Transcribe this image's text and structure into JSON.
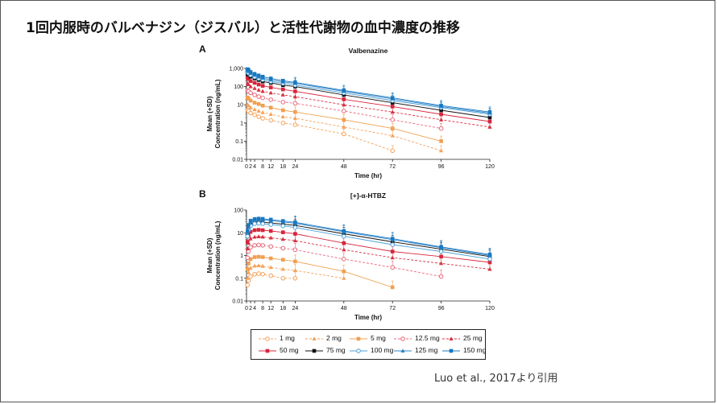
{
  "slide": {
    "title": "1回内服時のバルベナジン（ジスバル）と活性代謝物の血中濃度の推移",
    "citation": "Luo et al., 2017より引用"
  },
  "chart_data": [
    {
      "panel": "A",
      "type": "line",
      "title": "Valbenazine",
      "xlabel": "Time (hr)",
      "ylabel": "Mean (+SD)\nConcentration (ng/mL)",
      "yscale": "log",
      "ylim": [
        0.01,
        1000
      ],
      "xlim": [
        0,
        120
      ],
      "xticks": [
        0,
        2,
        4,
        8,
        12,
        18,
        24,
        48,
        72,
        96,
        120
      ],
      "yticks": [
        0.01,
        0.1,
        1,
        10,
        100,
        1000
      ],
      "yticklabels": [
        "0.01",
        "0.1",
        "1",
        "10",
        "100",
        "1,000"
      ],
      "series": [
        {
          "name": "1 mg",
          "color": "#f4a259",
          "marker": "circle-open",
          "dash": "dashed",
          "x": [
            0.5,
            1,
            2,
            4,
            6,
            8,
            12,
            18,
            24,
            48,
            72
          ],
          "y": [
            5,
            4.5,
            3.5,
            2.8,
            2.2,
            1.8,
            1.4,
            1.0,
            0.8,
            0.25,
            0.03
          ]
        },
        {
          "name": "2 mg",
          "color": "#f4a259",
          "marker": "triangle",
          "dash": "dashed",
          "x": [
            0.5,
            1,
            2,
            4,
            6,
            8,
            12,
            18,
            24,
            48,
            72,
            96
          ],
          "y": [
            10,
            9,
            7,
            5.5,
            4.5,
            3.8,
            3,
            2.2,
            1.8,
            0.6,
            0.2,
            0.03
          ]
        },
        {
          "name": "5 mg",
          "color": "#f0a050",
          "marker": "square",
          "dash": "solid",
          "x": [
            0.5,
            1,
            2,
            4,
            6,
            8,
            12,
            18,
            24,
            48,
            72,
            96
          ],
          "y": [
            25,
            22,
            17,
            13,
            11,
            9,
            7,
            5,
            4,
            1.5,
            0.5,
            0.1
          ]
        },
        {
          "name": "12.5 mg",
          "color": "#e8677a",
          "marker": "circle-open",
          "dash": "dashed",
          "x": [
            0.5,
            1,
            2,
            4,
            6,
            8,
            12,
            18,
            24,
            48,
            72,
            96
          ],
          "y": [
            60,
            55,
            45,
            35,
            28,
            24,
            19,
            14,
            12,
            4.5,
            1.5,
            0.5
          ]
        },
        {
          "name": "25 mg",
          "color": "#d7303f",
          "marker": "triangle",
          "dash": "dashed",
          "x": [
            0.5,
            1,
            2,
            4,
            6,
            8,
            12,
            18,
            24,
            48,
            72,
            96,
            120
          ],
          "y": [
            150,
            130,
            100,
            80,
            65,
            55,
            45,
            35,
            28,
            10,
            4,
            1.5,
            0.6
          ]
        },
        {
          "name": "50 mg",
          "color": "#d7263d",
          "marker": "square",
          "dash": "solid",
          "x": [
            0.5,
            1,
            2,
            4,
            6,
            8,
            12,
            18,
            24,
            48,
            72,
            96,
            120
          ],
          "y": [
            300,
            260,
            200,
            160,
            130,
            110,
            90,
            70,
            55,
            20,
            8,
            3,
            1.2
          ]
        },
        {
          "name": "75 mg",
          "color": "#111111",
          "marker": "square",
          "dash": "solid",
          "x": [
            0.5,
            1,
            2,
            4,
            6,
            8,
            12,
            18,
            24,
            48,
            72,
            96,
            120
          ],
          "y": [
            500,
            450,
            350,
            280,
            230,
            190,
            160,
            120,
            100,
            35,
            13,
            5,
            2
          ]
        },
        {
          "name": "100 mg",
          "color": "#4a9fd8",
          "marker": "circle-open",
          "dash": "solid",
          "x": [
            0.5,
            1,
            2,
            4,
            6,
            8,
            12,
            18,
            24,
            48,
            72,
            96,
            120
          ],
          "y": [
            600,
            550,
            430,
            340,
            280,
            240,
            190,
            150,
            120,
            45,
            17,
            7,
            3
          ]
        },
        {
          "name": "125 mg",
          "color": "#2f86c8",
          "marker": "triangle",
          "dash": "solid",
          "x": [
            0.5,
            1,
            2,
            4,
            6,
            8,
            12,
            18,
            24,
            48,
            72,
            96,
            120
          ],
          "y": [
            750,
            680,
            530,
            420,
            340,
            290,
            230,
            180,
            150,
            55,
            21,
            8,
            3.5
          ]
        },
        {
          "name": "150 mg",
          "color": "#1a78c2",
          "marker": "square",
          "dash": "solid",
          "x": [
            0.5,
            1,
            2,
            4,
            6,
            8,
            12,
            18,
            24,
            48,
            72,
            96,
            120
          ],
          "y": [
            900,
            820,
            640,
            500,
            410,
            350,
            280,
            210,
            170,
            62,
            24,
            9,
            4
          ]
        }
      ]
    },
    {
      "panel": "B",
      "type": "line",
      "title": "[+]-α-HTBZ",
      "xlabel": "Time (hr)",
      "ylabel": "Mean (+SD)\nConcentration (ng/mL)",
      "yscale": "log",
      "ylim": [
        0.01,
        100
      ],
      "xlim": [
        0,
        120
      ],
      "xticks": [
        0,
        2,
        4,
        8,
        12,
        18,
        24,
        48,
        72,
        96,
        120
      ],
      "yticks": [
        0.01,
        0.1,
        1,
        10,
        100
      ],
      "yticklabels": [
        "0.01",
        "0.1",
        "1",
        "10",
        "100"
      ],
      "series": [
        {
          "name": "1 mg",
          "color": "#f4a259",
          "marker": "circle-open",
          "dash": "dashed",
          "x": [
            0.5,
            1,
            2,
            4,
            6,
            8,
            12,
            18,
            24
          ],
          "y": [
            0.05,
            0.08,
            0.12,
            0.15,
            0.16,
            0.15,
            0.13,
            0.1,
            0.1
          ]
        },
        {
          "name": "2 mg",
          "color": "#f4a259",
          "marker": "triangle",
          "dash": "dashed",
          "x": [
            0.5,
            1,
            2,
            4,
            6,
            8,
            12,
            18,
            24,
            48
          ],
          "y": [
            0.1,
            0.18,
            0.28,
            0.35,
            0.36,
            0.34,
            0.3,
            0.25,
            0.22,
            0.1
          ]
        },
        {
          "name": "5 mg",
          "color": "#f0a050",
          "marker": "square",
          "dash": "solid",
          "x": [
            0.5,
            1,
            2,
            4,
            6,
            8,
            12,
            18,
            24,
            48,
            72
          ],
          "y": [
            0.25,
            0.45,
            0.7,
            0.85,
            0.88,
            0.85,
            0.75,
            0.65,
            0.55,
            0.2,
            0.04
          ]
        },
        {
          "name": "12.5 mg",
          "color": "#e8677a",
          "marker": "circle-open",
          "dash": "dashed",
          "x": [
            0.5,
            1,
            2,
            4,
            6,
            8,
            12,
            18,
            24,
            48,
            72,
            96
          ],
          "y": [
            0.8,
            1.5,
            2.3,
            2.8,
            2.9,
            2.8,
            2.5,
            2.1,
            1.8,
            0.7,
            0.3,
            0.12
          ]
        },
        {
          "name": "25 mg",
          "color": "#d7303f",
          "marker": "triangle",
          "dash": "dashed",
          "x": [
            0.5,
            1,
            2,
            4,
            6,
            8,
            12,
            18,
            24,
            48,
            72,
            96,
            120
          ],
          "y": [
            2,
            3.5,
            5.5,
            6.5,
            6.8,
            6.6,
            6,
            5.2,
            4.5,
            1.8,
            0.8,
            0.45,
            0.25
          ]
        },
        {
          "name": "50 mg",
          "color": "#d7263d",
          "marker": "square",
          "dash": "solid",
          "x": [
            0.5,
            1,
            2,
            4,
            6,
            8,
            12,
            18,
            24,
            48,
            72,
            96,
            120
          ],
          "y": [
            4,
            7.5,
            11,
            13,
            13.5,
            13,
            12,
            10.5,
            9,
            3.5,
            1.5,
            0.9,
            0.5
          ]
        },
        {
          "name": "75 mg",
          "color": "#111111",
          "marker": "square",
          "dash": "solid",
          "x": [
            0.5,
            1,
            2,
            4,
            6,
            8,
            12,
            18,
            24,
            48,
            72,
            96,
            120
          ],
          "y": [
            8,
            15,
            24,
            29,
            30,
            29,
            27,
            24,
            21,
            9,
            4,
            1.9,
            0.9
          ]
        },
        {
          "name": "100 mg",
          "color": "#4a9fd8",
          "marker": "circle-open",
          "dash": "solid",
          "x": [
            0.5,
            1,
            2,
            4,
            6,
            8,
            12,
            18,
            24,
            48,
            72,
            96,
            120
          ],
          "y": [
            7,
            13,
            20,
            25,
            26,
            25,
            23,
            20,
            17,
            7,
            3,
            1.5,
            0.7
          ]
        },
        {
          "name": "125 mg",
          "color": "#2f86c8",
          "marker": "triangle",
          "dash": "solid",
          "x": [
            0.5,
            1,
            2,
            4,
            6,
            8,
            12,
            18,
            24,
            48,
            72,
            96,
            120
          ],
          "y": [
            10,
            19,
            30,
            36,
            38,
            37,
            34,
            30,
            26,
            11,
            5,
            2.2,
            1
          ]
        },
        {
          "name": "150 mg",
          "color": "#1a78c2",
          "marker": "square",
          "dash": "solid",
          "x": [
            0.5,
            1,
            2,
            4,
            6,
            8,
            12,
            18,
            24,
            48,
            72,
            96,
            120
          ],
          "y": [
            12,
            22,
            34,
            40,
            42,
            41,
            38,
            33,
            29,
            12,
            5.5,
            2.4,
            1.1
          ]
        }
      ]
    }
  ],
  "legend": [
    {
      "name": "1 mg",
      "color": "#f4a259",
      "marker": "circle-open",
      "dash": "dashed"
    },
    {
      "name": "2 mg",
      "color": "#f4a259",
      "marker": "triangle",
      "dash": "dashed"
    },
    {
      "name": "5 mg",
      "color": "#f0a050",
      "marker": "square",
      "dash": "solid"
    },
    {
      "name": "12.5 mg",
      "color": "#e8677a",
      "marker": "circle-open",
      "dash": "dashed"
    },
    {
      "name": "25 mg",
      "color": "#d7303f",
      "marker": "triangle",
      "dash": "dashed"
    },
    {
      "name": "50 mg",
      "color": "#d7263d",
      "marker": "square",
      "dash": "solid"
    },
    {
      "name": "75 mg",
      "color": "#111111",
      "marker": "square",
      "dash": "solid"
    },
    {
      "name": "100 mg",
      "color": "#4a9fd8",
      "marker": "circle-open",
      "dash": "solid"
    },
    {
      "name": "125 mg",
      "color": "#2f86c8",
      "marker": "triangle",
      "dash": "solid"
    },
    {
      "name": "150 mg",
      "color": "#1a78c2",
      "marker": "square",
      "dash": "solid"
    }
  ]
}
